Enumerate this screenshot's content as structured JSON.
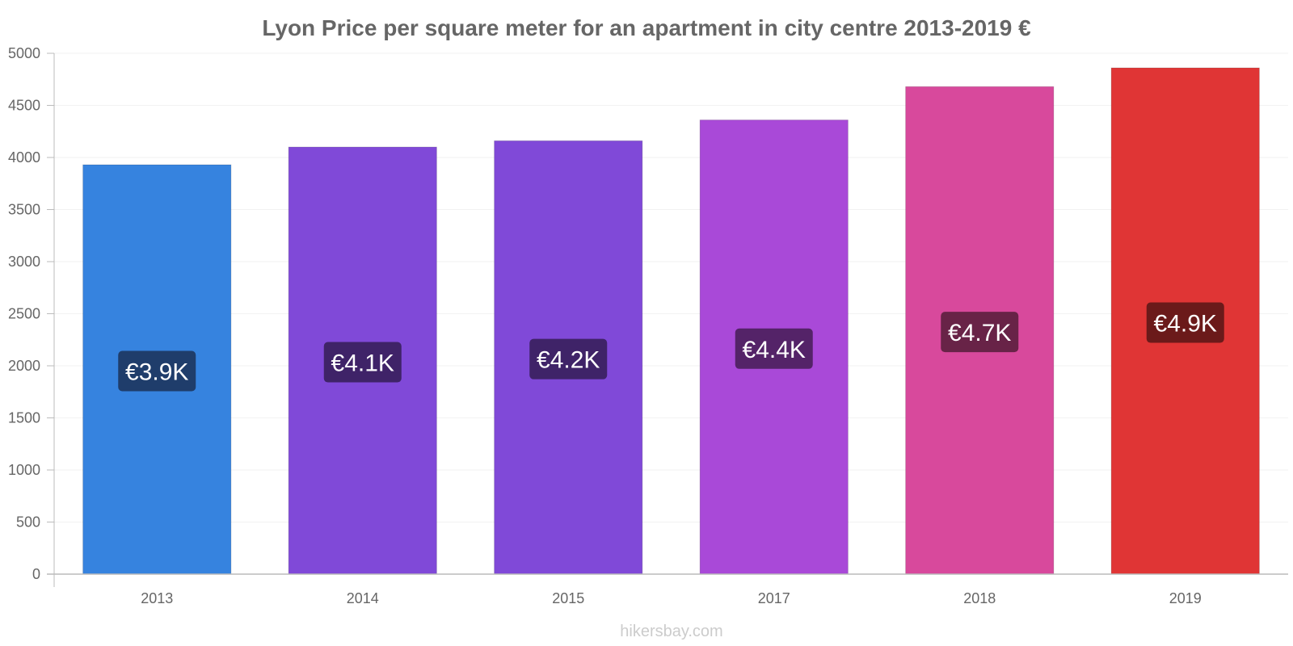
{
  "chart_data": {
    "type": "bar",
    "title": "Lyon Price per square meter for an apartment in city centre 2013-2019 €",
    "categories": [
      "2013",
      "2014",
      "2015",
      "2017",
      "2018",
      "2019"
    ],
    "values": [
      3930,
      4100,
      4160,
      4360,
      4680,
      4860
    ],
    "data_labels": [
      "€3.9K",
      "€4.1K",
      "€4.2K",
      "€4.4K",
      "€4.7K",
      "€4.9K"
    ],
    "bar_colors": [
      "#3683df",
      "#8049d8",
      "#8049d8",
      "#a949d8",
      "#d8499c",
      "#e03535"
    ],
    "label_bg_colors": [
      "#1f3d6b",
      "#3f2368",
      "#3f2368",
      "#542368",
      "#682347",
      "#6b1a1a"
    ],
    "ylim": [
      0,
      5000
    ],
    "yticks": [
      "0",
      "500",
      "1000",
      "1500",
      "2000",
      "2500",
      "3000",
      "3500",
      "4000",
      "4500",
      "5000"
    ],
    "xlabel": "",
    "ylabel": "",
    "grid": true
  },
  "watermark": "hikersbay.com"
}
